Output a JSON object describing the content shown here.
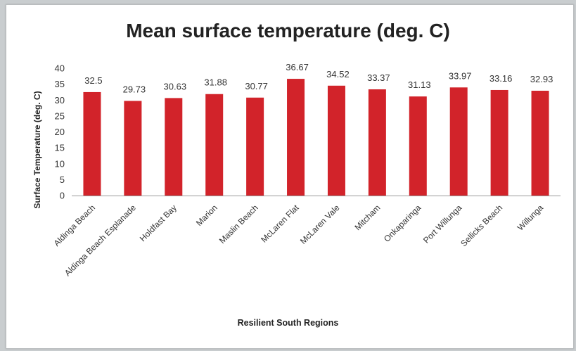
{
  "chart_data": {
    "type": "bar",
    "title": "Mean surface temperature (deg. C)",
    "xlabel": "Resilient South Regions",
    "ylabel": "Surface Temperature (deg. C)",
    "categories": [
      "Aldinga Beach",
      "Aldinga Beach Esplanade",
      "Holdfast Bay",
      "Marion",
      "Maslin Beach",
      "McLaren Flat",
      "McLaren Vale",
      "Mitcham",
      "Onkaparinga",
      "Port Willunga",
      "Sellicks Beach",
      "Willunga"
    ],
    "values": [
      32.5,
      29.73,
      30.63,
      31.88,
      30.77,
      36.67,
      34.52,
      33.37,
      31.13,
      33.97,
      33.16,
      32.93
    ],
    "value_labels": [
      "32.5",
      "29.73",
      "30.63",
      "31.88",
      "30.77",
      "36.67",
      "34.52",
      "33.37",
      "31.13",
      "33.97",
      "33.16",
      "32.93"
    ],
    "ylim": [
      0,
      40
    ],
    "yticks": [
      "0",
      "5",
      "10",
      "15",
      "20",
      "25",
      "30",
      "35",
      "40"
    ],
    "grid": false,
    "legend": "none",
    "bar_color": "#d2232a"
  }
}
